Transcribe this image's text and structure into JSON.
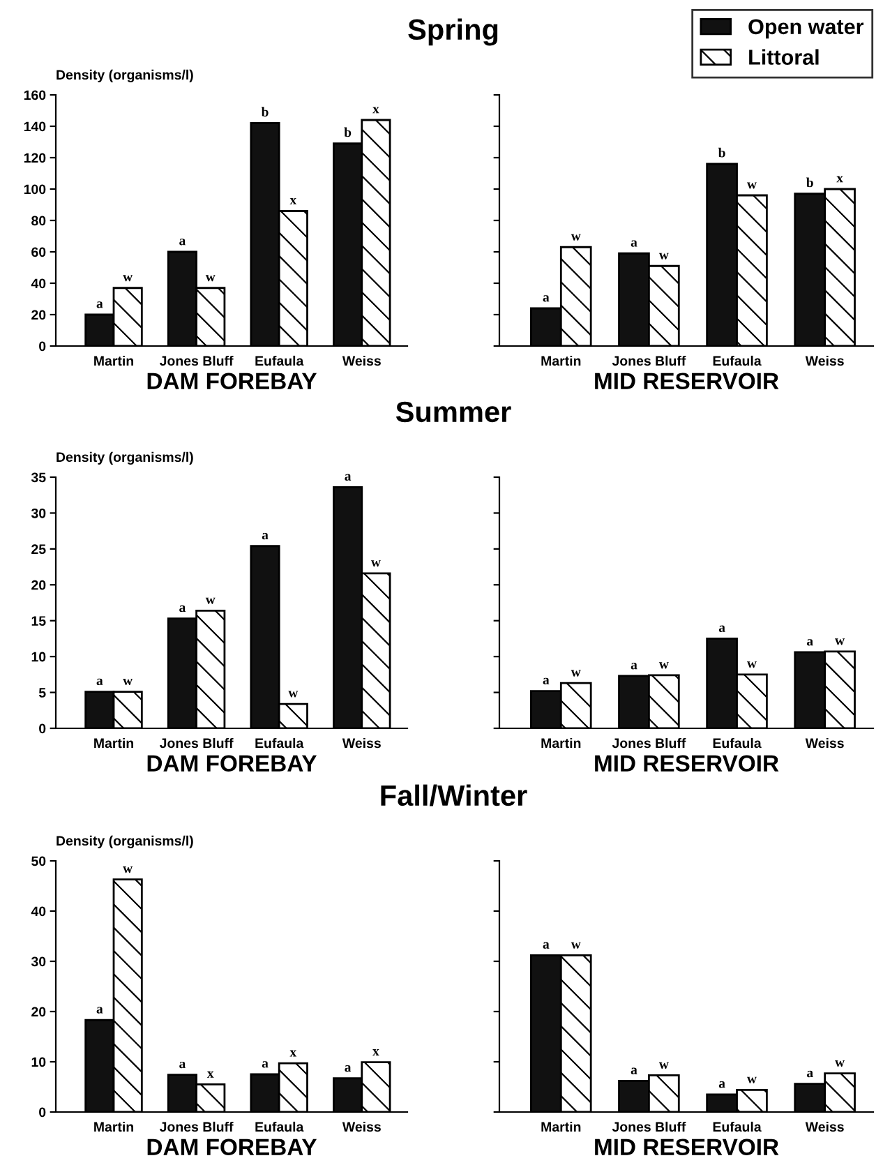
{
  "chart_data": [
    {
      "type": "bar",
      "title": "Spring",
      "xlabel": "DAM FOREBAY",
      "ylabel": "Density (organisms/l)",
      "categories": [
        "Martin",
        "Jones Bluff",
        "Eufaula",
        "Weiss"
      ],
      "ylim": [
        0,
        160
      ],
      "yticks": [
        0,
        20,
        40,
        60,
        80,
        100,
        120,
        140,
        160
      ],
      "series": [
        {
          "color": "#111111",
          "values": [
            20,
            60,
            142,
            129
          ],
          "value_labels": [
            "a",
            "a",
            "b",
            "b"
          ]
        },
        {
          "color": "#ffffff",
          "values": [
            37,
            37,
            86,
            144
          ],
          "value_labels": [
            "w",
            "w",
            "x",
            "x"
          ]
        }
      ]
    },
    {
      "type": "bar",
      "xlabel": "MID RESERVOIR",
      "categories": [
        "Martin",
        "Jones Bluff",
        "Eufaula",
        "Weiss"
      ],
      "ylim": [
        0,
        160
      ],
      "tick_labels": "x",
      "legend": "top right",
      "yticks": [
        {
          "value": 0,
          "label": null
        },
        {
          "value": 20,
          "label": null
        },
        {
          "value": 40,
          "label": null
        },
        {
          "value": 60,
          "label": null
        },
        {
          "value": 80,
          "label": null
        },
        {
          "value": 100,
          "label": null
        },
        {
          "value": 120,
          "label": null
        },
        {
          "value": 140,
          "label": null
        },
        {
          "value": 160,
          "label": null
        }
      ],
      "series": [
        {
          "name": "Open water",
          "color": "#111111",
          "values": [
            24,
            59,
            116,
            97
          ],
          "value_labels": [
            "a",
            "a",
            "b",
            "b"
          ]
        },
        {
          "name": "Littoral",
          "color": "#ffffff",
          "values": [
            63,
            51,
            96,
            100
          ],
          "value_labels": [
            "w",
            "w",
            "w",
            "x"
          ]
        }
      ]
    },
    {
      "type": "bar",
      "title": "Summer",
      "xlabel": "DAM FOREBAY",
      "ylabel": "Density (organisms/l)",
      "categories": [
        "Martin",
        "Jones Bluff",
        "Eufaula",
        "Weiss"
      ],
      "ylim": [
        0,
        35
      ],
      "yticks": [
        0,
        5,
        10,
        15,
        20,
        25,
        30,
        35
      ],
      "series": [
        {
          "color": "#111111",
          "values": [
            5.1,
            15.3,
            25.4,
            33.6
          ],
          "value_labels": [
            "a",
            "a",
            "a",
            "a"
          ]
        },
        {
          "color": "#ffffff",
          "values": [
            5.1,
            16.4,
            3.4,
            21.6
          ],
          "value_labels": [
            "w",
            "w",
            "w",
            "w"
          ]
        }
      ]
    },
    {
      "type": "bar",
      "xlabel": "MID RESERVOIR",
      "categories": [
        "Martin",
        "Jones Bluff",
        "Eufaula",
        "Weiss"
      ],
      "ylim": [
        0,
        35
      ],
      "tick_labels": "x",
      "yticks": [
        {
          "value": 0,
          "label": null
        },
        {
          "value": 5,
          "label": null
        },
        {
          "value": 10,
          "label": null
        },
        {
          "value": 15,
          "label": null
        },
        {
          "value": 20,
          "label": null
        },
        {
          "value": 25,
          "label": null
        },
        {
          "value": 30,
          "label": null
        },
        {
          "value": 35,
          "label": null
        }
      ],
      "series": [
        {
          "color": "#111111",
          "values": [
            5.2,
            7.3,
            12.5,
            10.6
          ],
          "value_labels": [
            "a",
            "a",
            "a",
            "a"
          ]
        },
        {
          "color": "#ffffff",
          "values": [
            6.3,
            7.4,
            7.5,
            10.7
          ],
          "value_labels": [
            "w",
            "w",
            "w",
            "w"
          ]
        }
      ]
    },
    {
      "type": "bar",
      "title": "Fall/Winter",
      "xlabel": "DAM FOREBAY",
      "ylabel": "Density (organisms/l)",
      "categories": [
        "Martin",
        "Jones Bluff",
        "Eufaula",
        "Weiss"
      ],
      "ylim": [
        0,
        50
      ],
      "yticks": [
        0,
        10,
        20,
        30,
        40,
        50
      ],
      "series": [
        {
          "color": "#111111",
          "values": [
            18.3,
            7.4,
            7.5,
            6.7
          ],
          "value_labels": [
            "a",
            "a",
            "a",
            "a"
          ]
        },
        {
          "color": "#ffffff",
          "values": [
            46.3,
            5.5,
            9.7,
            9.9
          ],
          "value_labels": [
            "w",
            "x",
            "x",
            "x"
          ]
        }
      ]
    },
    {
      "type": "bar",
      "xlabel": "MID RESERVOIR",
      "categories": [
        "Martin",
        "Jones Bluff",
        "Eufaula",
        "Weiss"
      ],
      "ylim": [
        0,
        50
      ],
      "tick_labels": "x",
      "yticks": [
        {
          "value": 0,
          "label": null
        },
        {
          "value": 10,
          "label": null
        },
        {
          "value": 20,
          "label": null
        },
        {
          "value": 30,
          "label": null
        },
        {
          "value": 40,
          "label": null
        },
        {
          "value": 50,
          "label": null
        }
      ],
      "series": [
        {
          "color": "#111111",
          "values": [
            31.2,
            6.2,
            3.5,
            5.6
          ],
          "value_labels": [
            "a",
            "a",
            "a",
            "a"
          ]
        },
        {
          "color": "#ffffff",
          "values": [
            31.2,
            7.3,
            4.4,
            7.7
          ],
          "value_labels": [
            "w",
            "w",
            "w",
            "w"
          ]
        }
      ]
    }
  ]
}
